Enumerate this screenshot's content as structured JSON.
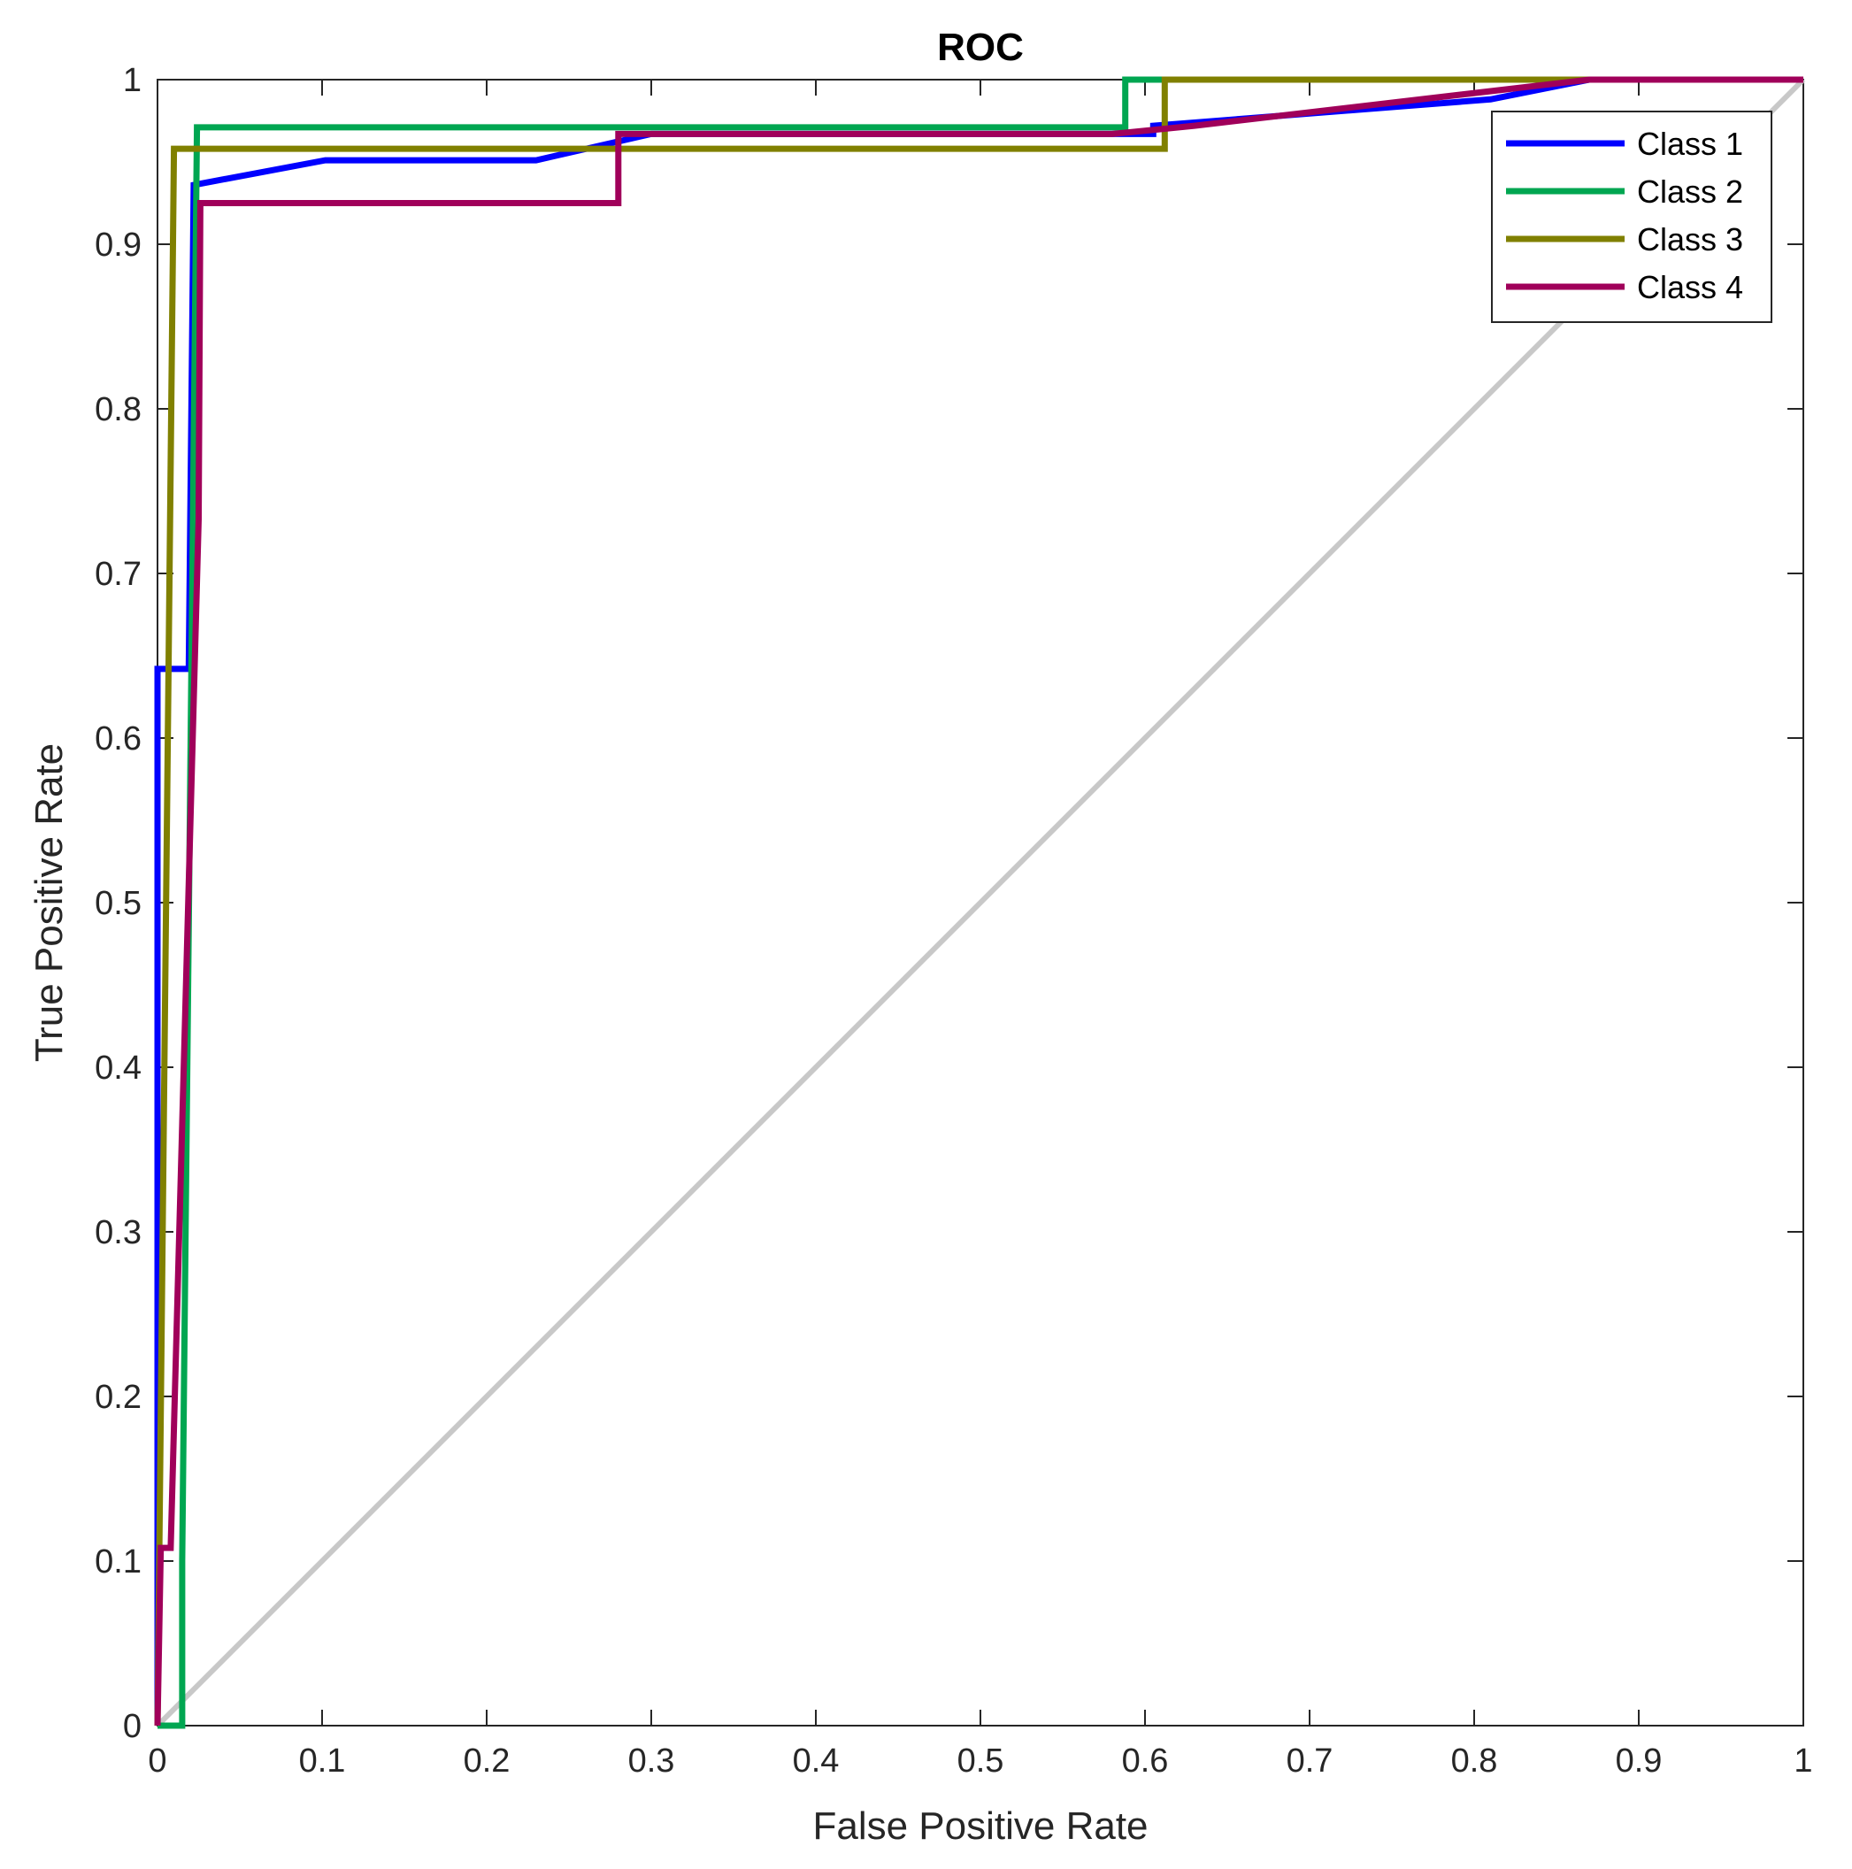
{
  "chart_data": {
    "type": "line",
    "title": "ROC",
    "xlabel": "False Positive Rate",
    "ylabel": "True Positive Rate",
    "xlim": [
      0,
      1
    ],
    "ylim": [
      0,
      1
    ],
    "xticks": [
      "0",
      "0.1",
      "0.2",
      "0.3",
      "0.4",
      "0.5",
      "0.6",
      "0.7",
      "0.8",
      "0.9",
      "1"
    ],
    "yticks": [
      "0",
      "0.1",
      "0.2",
      "0.3",
      "0.4",
      "0.5",
      "0.6",
      "0.7",
      "0.8",
      "0.9",
      "1"
    ],
    "grid": false,
    "legend_position": "top-right",
    "series": [
      {
        "name": "Class 1",
        "color": "#0000ff",
        "x": [
          0,
          0,
          0.019,
          0.022,
          0.102,
          0.23,
          0.3,
          0.605,
          0.605,
          0.81,
          0.87,
          1
        ],
        "y": [
          0,
          0.642,
          0.642,
          0.936,
          0.951,
          0.951,
          0.967,
          0.967,
          0.972,
          0.988,
          1,
          1
        ]
      },
      {
        "name": "Class 2",
        "color": "#00a651",
        "x": [
          0,
          0.015,
          0.015,
          0.024,
          0.588,
          0.588,
          1
        ],
        "y": [
          0,
          0,
          0.1,
          0.971,
          0.971,
          1,
          1
        ]
      },
      {
        "name": "Class 3",
        "color": "#808000",
        "x": [
          0,
          0.01,
          0.01,
          0.612,
          0.612,
          1
        ],
        "y": [
          0,
          0.958,
          0.958,
          0.958,
          1,
          1
        ]
      },
      {
        "name": "Class 4",
        "color": "#a0005a",
        "x": [
          0,
          0.002,
          0.008,
          0.025,
          0.026,
          0.28,
          0.28,
          0.58,
          0.63,
          0.87,
          1
        ],
        "y": [
          0,
          0.108,
          0.108,
          0.733,
          0.925,
          0.925,
          0.967,
          0.967,
          0.972,
          1,
          1
        ]
      }
    ],
    "reference_line": {
      "color": "#c8c8c8",
      "x": [
        0,
        1
      ],
      "y": [
        0,
        1
      ]
    },
    "axis_color": "#262626"
  }
}
